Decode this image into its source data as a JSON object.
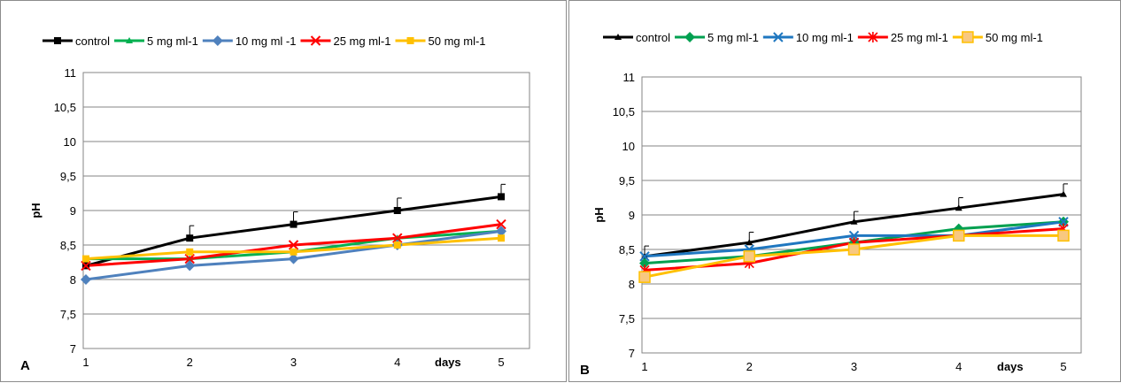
{
  "chart_data": [
    {
      "type": "line",
      "panel_label": "A",
      "ylabel": "pH",
      "xlabel": "days",
      "x": [
        1,
        2,
        3,
        4,
        5
      ],
      "ylim": [
        7,
        11
      ],
      "yticks": [
        "7",
        "7,5",
        "8",
        "8,5",
        "9",
        "9,5",
        "10",
        "10,5",
        "11"
      ],
      "xticks": [
        "1",
        "2",
        "3",
        "4",
        "5"
      ],
      "legend_position": "top",
      "grid": true,
      "series": [
        {
          "name": "control",
          "values": [
            8.2,
            8.6,
            8.8,
            9.0,
            9.2
          ],
          "errors": [
            0.05,
            0.18,
            0.18,
            0.18,
            0.18
          ],
          "color": "#000000",
          "marker": "square"
        },
        {
          "name": "5 mg ml-1",
          "values": [
            8.3,
            8.3,
            8.4,
            8.6,
            8.7
          ],
          "color": "#00B050",
          "marker": "triangle"
        },
        {
          "name": "10 mg ml -1",
          "values": [
            8.0,
            8.2,
            8.3,
            8.5,
            8.7
          ],
          "color": "#4F81BD",
          "marker": "diamond"
        },
        {
          "name": "25 mg ml-1",
          "values": [
            8.2,
            8.3,
            8.5,
            8.6,
            8.8
          ],
          "color": "#FF0000",
          "marker": "x"
        },
        {
          "name": "50 mg ml-1",
          "values": [
            8.3,
            8.4,
            8.4,
            8.5,
            8.6
          ],
          "color": "#FFC000",
          "marker": "square"
        }
      ]
    },
    {
      "type": "line",
      "panel_label": "B",
      "ylabel": "pH",
      "xlabel": "days",
      "x": [
        1,
        2,
        3,
        4,
        5
      ],
      "ylim": [
        7,
        11
      ],
      "yticks": [
        "7",
        "7,5",
        "8",
        "8,5",
        "9",
        "9,5",
        "10",
        "10,5",
        "11"
      ],
      "xticks": [
        "1",
        "2",
        "3",
        "4",
        "5"
      ],
      "legend_position": "top",
      "grid": true,
      "series": [
        {
          "name": "control",
          "values": [
            8.4,
            8.6,
            8.9,
            9.1,
            9.3
          ],
          "errors": [
            0.15,
            0.15,
            0.15,
            0.15,
            0.15
          ],
          "color": "#000000",
          "marker": "triangle"
        },
        {
          "name": "5 mg ml-1",
          "values": [
            8.3,
            8.4,
            8.6,
            8.8,
            8.9
          ],
          "color": "#00A050",
          "marker": "diamond"
        },
        {
          "name": "10 mg ml-1",
          "values": [
            8.4,
            8.5,
            8.7,
            8.7,
            8.9
          ],
          "color": "#1F77C0",
          "marker": "x"
        },
        {
          "name": "25 mg ml-1",
          "values": [
            8.2,
            8.3,
            8.6,
            8.7,
            8.8
          ],
          "color": "#FF0000",
          "marker": "star"
        },
        {
          "name": "50 mg ml-1",
          "values": [
            8.1,
            8.4,
            8.5,
            8.7,
            8.7
          ],
          "color": "#FFC000",
          "marker": "square-light"
        }
      ]
    }
  ]
}
